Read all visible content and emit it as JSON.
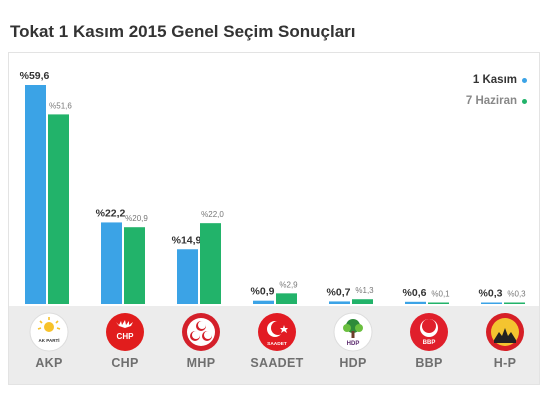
{
  "title": "Tokat 1 Kasım 2015 Genel Seçim Sonuçları",
  "colors": {
    "kasim": "#3ba3e6",
    "haziran": "#22b36a"
  },
  "chart_data": {
    "type": "bar",
    "title": "Tokat 1 Kasım 2015 Genel Seçim Sonuçları",
    "categories": [
      "AKP",
      "CHP",
      "MHP",
      "SAADET",
      "HDP",
      "BBP",
      "H-P"
    ],
    "series": [
      {
        "name": "1 Kasım",
        "values": [
          59.6,
          22.2,
          14.9,
          0.9,
          0.7,
          0.6,
          0.3
        ],
        "labels": [
          "%59,6",
          "%22,2",
          "%14,9",
          "%0,9",
          "%0,7",
          "%0,6",
          "%0,3"
        ]
      },
      {
        "name": "7 Haziran",
        "values": [
          51.6,
          20.9,
          22.0,
          2.9,
          1.3,
          0.1,
          0.3
        ],
        "labels": [
          "%51,6",
          "%20,9",
          "%22,0",
          "%2,9",
          "%1,3",
          "%0,1",
          "%0,3"
        ]
      }
    ],
    "ylim": [
      0,
      60
    ],
    "grid": false,
    "legend": "top-right"
  },
  "parties": [
    {
      "name": "AKP",
      "logo": "ak-parti-logo",
      "logo_text": "AK PARTİ"
    },
    {
      "name": "CHP",
      "logo": "chp-logo",
      "logo_text": "CHP"
    },
    {
      "name": "MHP",
      "logo": "mhp-logo",
      "logo_text": ""
    },
    {
      "name": "SAADET",
      "logo": "saadet-logo",
      "logo_text": "SAADET"
    },
    {
      "name": "HDP",
      "logo": "hdp-logo",
      "logo_text": "HDP"
    },
    {
      "name": "BBP",
      "logo": "bbp-logo",
      "logo_text": "BBP"
    },
    {
      "name": "H-P",
      "logo": "hak-ve-ozgurlukler-logo",
      "logo_text": ""
    }
  ]
}
